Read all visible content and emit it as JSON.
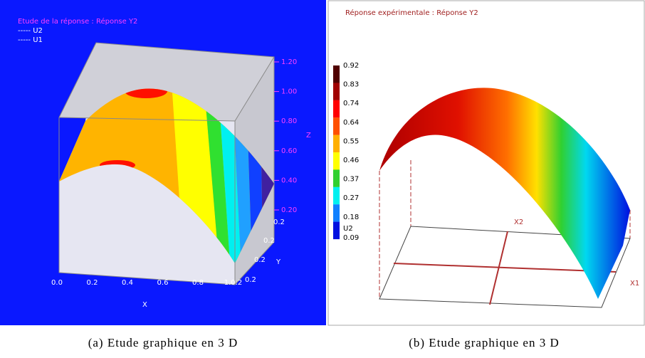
{
  "panel_a": {
    "title": "Etude de la réponse  : Réponse Y2",
    "legend": [
      "----- U2",
      "----- U1"
    ],
    "z_ticks": [
      "1.20",
      "1.00",
      "0.80",
      "0.60",
      "0.40",
      "0.20"
    ],
    "z_label": "Z",
    "x_ticks": [
      "0.0",
      "0.2",
      "0.4",
      "0.6",
      "0.8",
      "1.0.2"
    ],
    "x_label": "X",
    "y_ticks": [
      "0.2",
      "0.2",
      "0.2",
      "0.2"
    ],
    "y_label": "Y"
  },
  "panel_b": {
    "title": "Réponse expérimentale  : Réponse Y2",
    "colorbar_ticks": [
      "0.92",
      "0.83",
      "0.74",
      "0.64",
      "0.55",
      "0.46",
      "0.37",
      "0.27",
      "0.18",
      "0.09"
    ],
    "colorbar_label": "U2",
    "x2_label": "X2",
    "x1_label": "X1"
  },
  "captions": [
    "(a) Etude graphique en 3 D",
    "(b) Etude graphique en 3 D"
  ]
}
